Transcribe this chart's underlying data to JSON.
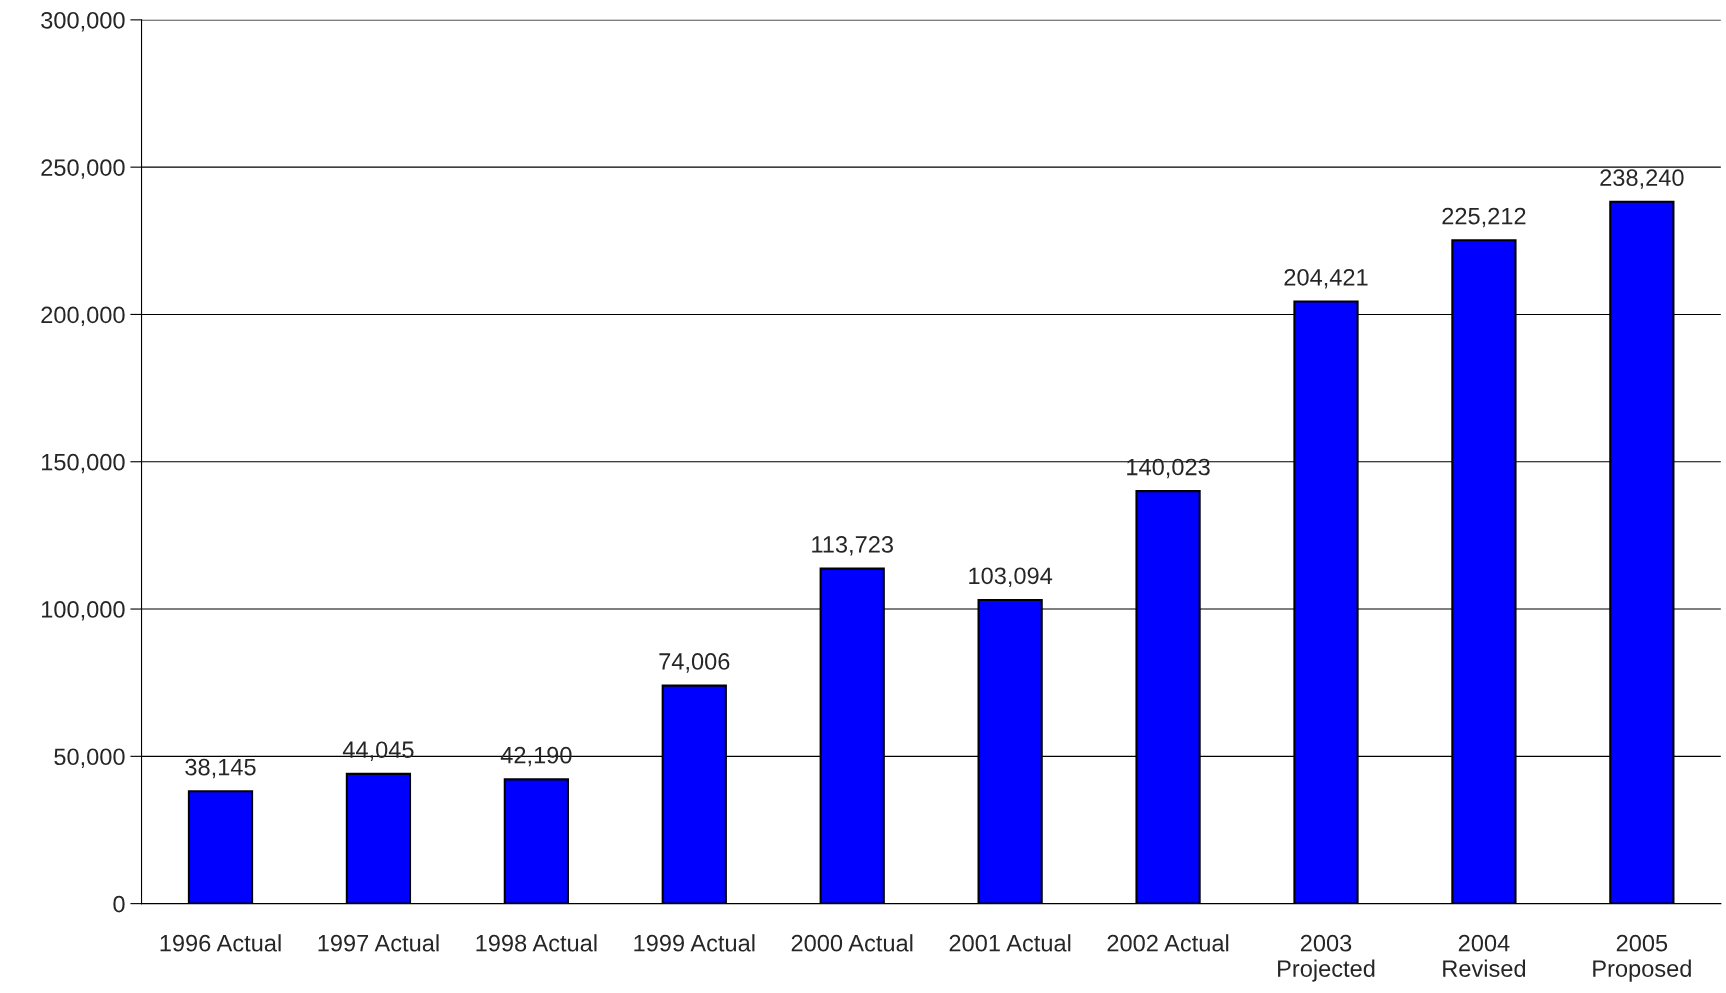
{
  "chart_data": {
    "type": "bar",
    "categories": [
      "1996 Actual",
      "1997 Actual",
      "1998 Actual",
      "1999 Actual",
      "2000 Actual",
      "2001 Actual",
      "2002 Actual",
      "2003\nProjected",
      "2004\nRevised",
      "2005\nProposed"
    ],
    "values": [
      38145,
      44045,
      42190,
      74006,
      113723,
      103094,
      140023,
      204421,
      225212,
      238240
    ],
    "value_labels": [
      "38,145",
      "44,045",
      "42,190",
      "74,006",
      "113,723",
      "103,094",
      "140,023",
      "204,421",
      "225,212",
      "238,240"
    ],
    "color": "#0000ff",
    "ylim": [
      0,
      300000
    ],
    "yticks": [
      0,
      {
        "value": 50000,
        "label": "50,000"
      },
      {
        "value": 100000,
        "label": "100,000"
      },
      {
        "value": 150000,
        "label": "150,000"
      },
      {
        "value": 200000,
        "label": "200,000"
      },
      {
        "value": 250000,
        "label": "250,000"
      },
      {
        "value": 300000,
        "label": "300,000"
      }
    ],
    "grid": "y",
    "legend": false
  }
}
